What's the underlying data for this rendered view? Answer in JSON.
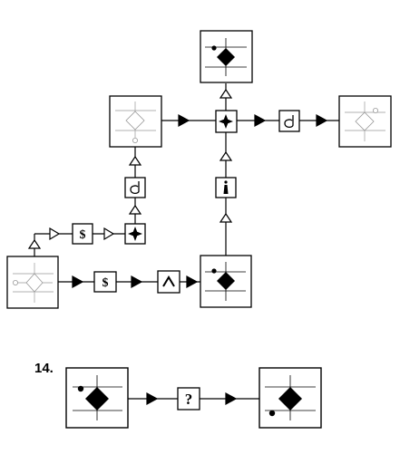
{
  "question": {
    "number_label": "14.",
    "operator_symbols": {
      "dollar": "$",
      "caret": "^",
      "unknown": "?"
    }
  },
  "palette": {
    "stroke": "#000000",
    "fill": "#000000",
    "thin_line": "#999999",
    "background": "#ffffff"
  }
}
